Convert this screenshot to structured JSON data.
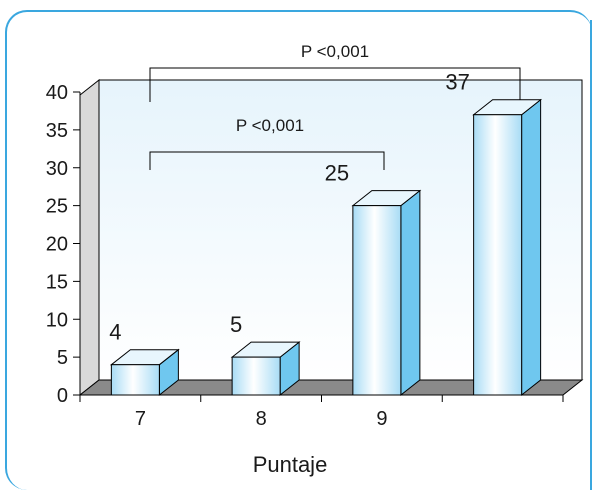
{
  "chart_data": {
    "type": "bar",
    "categories": [
      "7",
      "8",
      "9",
      ""
    ],
    "values": [
      4,
      5,
      25,
      37
    ],
    "data_labels": [
      "4",
      "5",
      "25",
      "37"
    ],
    "xlabel": "Puntaje",
    "ylabel": "",
    "ylim": [
      0,
      40
    ],
    "yticks": [
      "0",
      "5",
      "10",
      "15",
      "20",
      "25",
      "30",
      "35",
      "40"
    ],
    "grid": false,
    "annotations": [
      {
        "text": "P <0,001",
        "from_category": 0,
        "to_category": 3
      },
      {
        "text": "P <0,001",
        "from_category": 0,
        "to_category": 2
      }
    ]
  },
  "colors": {
    "frame_border": "#3aa7df",
    "bar_front_light": "#ffffff",
    "bar_front_dark": "#a8dcf5",
    "bar_side": "#6fc7ef",
    "floor": "#8a8a8a"
  }
}
